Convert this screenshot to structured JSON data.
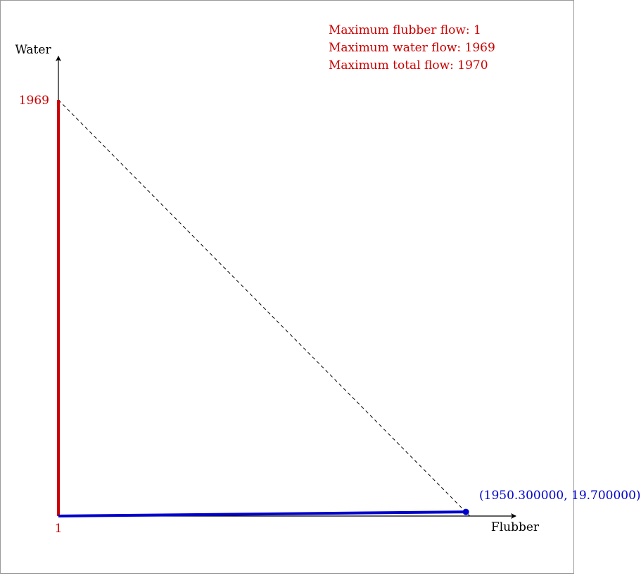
{
  "axes": {
    "x_label": "Flubber",
    "y_label": "Water"
  },
  "ticks": {
    "y_max_label": "1969",
    "x_origin_label": "1"
  },
  "info": {
    "max_flubber": "Maximum flubber flow: 1",
    "max_water": "Maximum water flow: 1969",
    "max_total": "Maximum total flow: 1970"
  },
  "point": {
    "label": "(1950.300000, 19.700000)"
  },
  "colors": {
    "red": "#cc0000",
    "blue": "#0000cc",
    "axis": "#000000",
    "frame": "#999999"
  },
  "chart_data": {
    "type": "line",
    "total_flow": 1970,
    "max_flubber_flow": 1,
    "max_water_flow": 1969,
    "series": [
      {
        "values": [
          [
            0,
            0
          ],
          [
            0,
            1969
          ]
        ]
      },
      {
        "values": [
          [
            0,
            0
          ],
          [
            1950.3,
            19.7
          ]
        ]
      }
    ],
    "dashed_line": [
      [
        0,
        1969
      ],
      [
        1969,
        0
      ]
    ],
    "point": {
      "x": 1950.3,
      "y": 19.7
    }
  }
}
